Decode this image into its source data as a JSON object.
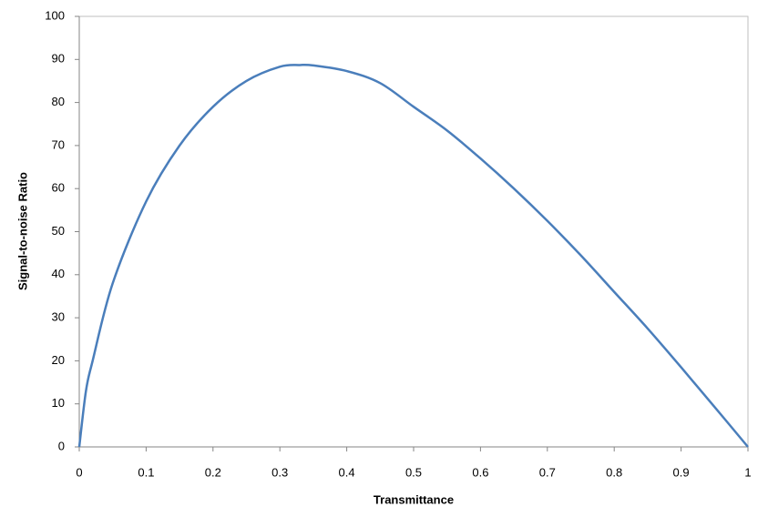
{
  "chart_data": {
    "type": "line",
    "x_label": "Transmittance",
    "y_label": "Signal-to-noise Ratio",
    "x": [
      0,
      0.01,
      0.02,
      0.05,
      0.1,
      0.15,
      0.2,
      0.25,
      0.3,
      0.33,
      0.35,
      0.4,
      0.45,
      0.5,
      0.55,
      0.6,
      0.65,
      0.7,
      0.75,
      0.8,
      0.85,
      0.9,
      0.95,
      1
    ],
    "values": [
      0,
      13,
      20,
      38,
      57,
      70,
      79,
      85,
      88.3,
      88.7,
      88.6,
      87.3,
      84.5,
      79,
      73.5,
      67,
      60,
      52.5,
      44.5,
      36,
      27.5,
      18.5,
      9.3,
      0
    ],
    "color": "#4a7ebb",
    "xlim": [
      0,
      1
    ],
    "xticks": [
      0,
      0.1,
      0.2,
      0.3,
      0.4,
      0.5,
      0.6,
      0.7,
      0.8,
      0.9,
      1
    ],
    "ylim": [
      0,
      100
    ],
    "yticks": [
      0,
      10,
      20,
      30,
      40,
      50,
      60,
      70,
      80,
      90,
      100
    ],
    "grid": false
  }
}
